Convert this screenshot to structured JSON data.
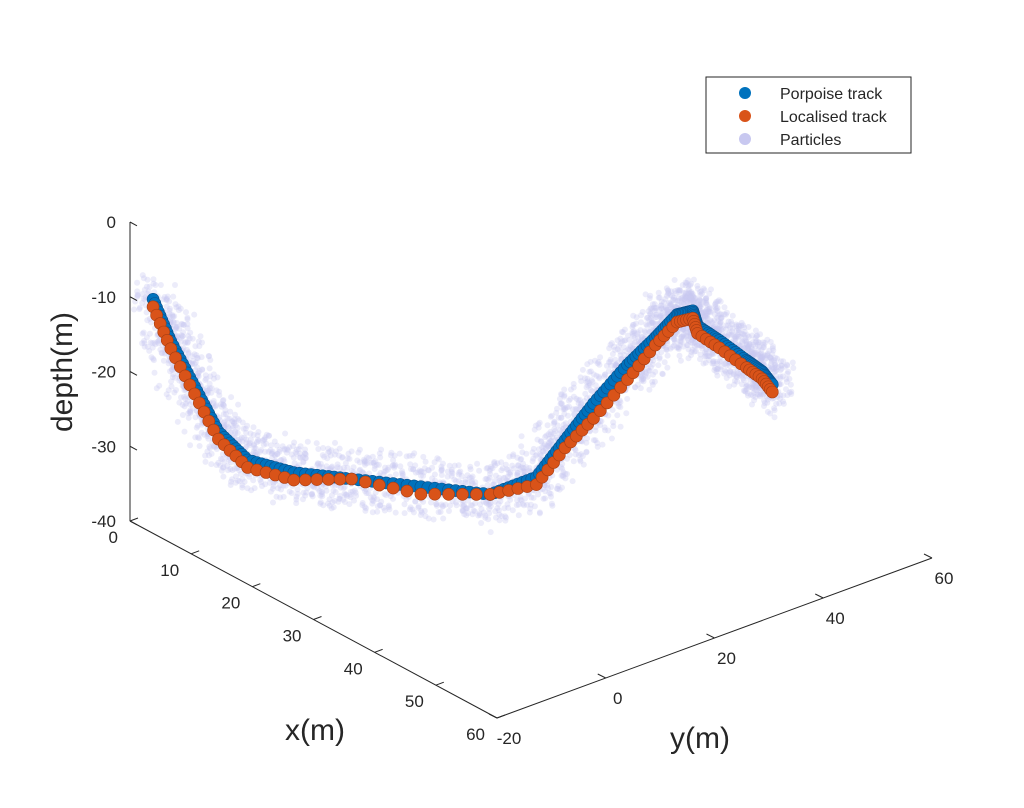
{
  "chart_data": {
    "type": "scatter",
    "projection": "3d",
    "xlabel": "x(m)",
    "ylabel": "y(m)",
    "zlabel": "depth(m)",
    "xlim": [
      0,
      60
    ],
    "ylim": [
      -20,
      60
    ],
    "zlim": [
      -40,
      0
    ],
    "x_ticks": [
      "0",
      "10",
      "20",
      "30",
      "40",
      "50",
      "60"
    ],
    "y_ticks": [
      "-20",
      "0",
      "20",
      "40",
      "60"
    ],
    "z_ticks": [
      "0",
      "-10",
      "-20",
      "-30",
      "-40"
    ],
    "grid": false,
    "legend_position": "top-right",
    "series": [
      {
        "name": "Porpoise track",
        "color": "#0072BD",
        "marker": "o",
        "path": [
          {
            "x": 2,
            "y": -18,
            "depth": -10
          },
          {
            "x": 4,
            "y": -17,
            "depth": -15
          },
          {
            "x": 7,
            "y": -16,
            "depth": -20
          },
          {
            "x": 10,
            "y": -15,
            "depth": -25
          },
          {
            "x": 13,
            "y": -13,
            "depth": -28
          },
          {
            "x": 17,
            "y": -9,
            "depth": -29
          },
          {
            "x": 22,
            "y": -4,
            "depth": -29
          },
          {
            "x": 28,
            "y": 2,
            "depth": -29
          },
          {
            "x": 34,
            "y": 8,
            "depth": -29
          },
          {
            "x": 38,
            "y": 12,
            "depth": -26
          },
          {
            "x": 40,
            "y": 15,
            "depth": -21
          },
          {
            "x": 42,
            "y": 18,
            "depth": -16
          },
          {
            "x": 44,
            "y": 22,
            "depth": -11
          },
          {
            "x": 45,
            "y": 26,
            "depth": -8
          },
          {
            "x": 45,
            "y": 30,
            "depth": -6
          },
          {
            "x": 44,
            "y": 34,
            "depth": -7
          },
          {
            "x": 43,
            "y": 36,
            "depth": -10
          },
          {
            "x": 43,
            "y": 40,
            "depth": -13
          },
          {
            "x": 43,
            "y": 45,
            "depth": -17
          },
          {
            "x": 42,
            "y": 49,
            "depth": -20
          },
          {
            "x": 41,
            "y": 52,
            "depth": -23
          }
        ]
      },
      {
        "name": "Localised track",
        "color": "#D95319",
        "marker": "o",
        "path": [
          {
            "x": 2,
            "y": -18,
            "depth": -11
          },
          {
            "x": 4,
            "y": -17,
            "depth": -16
          },
          {
            "x": 7,
            "y": -16,
            "depth": -21
          },
          {
            "x": 10,
            "y": -15,
            "depth": -26
          },
          {
            "x": 13,
            "y": -13,
            "depth": -29
          },
          {
            "x": 17,
            "y": -9,
            "depth": -30
          },
          {
            "x": 22,
            "y": -4,
            "depth": -29
          },
          {
            "x": 28,
            "y": 2,
            "depth": -30
          },
          {
            "x": 34,
            "y": 8,
            "depth": -29
          },
          {
            "x": 38,
            "y": 12,
            "depth": -27
          },
          {
            "x": 40,
            "y": 15,
            "depth": -22
          },
          {
            "x": 42,
            "y": 18,
            "depth": -18
          },
          {
            "x": 44,
            "y": 22,
            "depth": -13
          },
          {
            "x": 45,
            "y": 26,
            "depth": -9
          },
          {
            "x": 45,
            "y": 30,
            "depth": -7
          },
          {
            "x": 44,
            "y": 34,
            "depth": -8
          },
          {
            "x": 43,
            "y": 36,
            "depth": -11
          },
          {
            "x": 43,
            "y": 40,
            "depth": -14
          },
          {
            "x": 43,
            "y": 45,
            "depth": -18
          },
          {
            "x": 42,
            "y": 49,
            "depth": -21
          },
          {
            "x": 41,
            "y": 52,
            "depth": -24
          }
        ]
      },
      {
        "name": "Particles",
        "color": "#C8C8F0",
        "marker": "o",
        "opacity": 0.35
      }
    ]
  }
}
